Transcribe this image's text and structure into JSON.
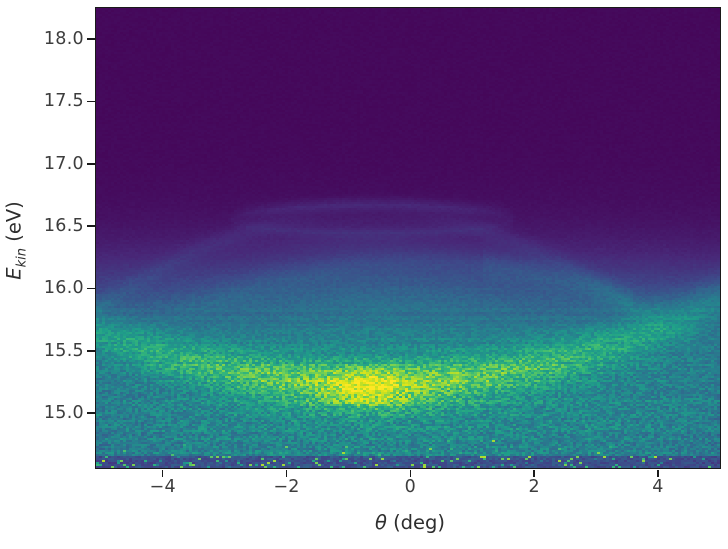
{
  "chart_data": {
    "type": "heatmap",
    "title": "",
    "xlabel": "θ (deg)",
    "ylabel": "E_kin (eV)",
    "xlabel_parts": {
      "symbol": "θ",
      "rest": " (deg)"
    },
    "ylabel_parts": {
      "symbol": "E",
      "subscript": "kin",
      "rest": " (eV)"
    },
    "x_range": [
      -5.07,
      5.01
    ],
    "y_range": [
      14.56,
      18.25
    ],
    "x_ticks": [
      -4,
      -2,
      0,
      2,
      4
    ],
    "x_tick_labels": [
      "−4",
      "−2",
      "0",
      "2",
      "4"
    ],
    "y_ticks": [
      18.0,
      17.5,
      17.0,
      16.5,
      16.0,
      15.5,
      15.0
    ],
    "y_tick_labels": [
      "18.0",
      "17.5",
      "17.0",
      "16.5",
      "16.0",
      "15.5",
      "15.0"
    ],
    "grid": false,
    "legend": "none",
    "colormap": "viridis",
    "colormap_stops": [
      [
        0.0,
        68,
        1,
        84
      ],
      [
        0.1,
        72,
        40,
        120
      ],
      [
        0.2,
        62,
        73,
        137
      ],
      [
        0.3,
        49,
        104,
        142
      ],
      [
        0.4,
        38,
        130,
        142
      ],
      [
        0.5,
        31,
        158,
        137
      ],
      [
        0.6,
        53,
        183,
        121
      ],
      [
        0.7,
        110,
        206,
        88
      ],
      [
        0.8,
        181,
        222,
        43
      ],
      [
        0.9,
        226,
        228,
        24
      ],
      [
        1.0,
        253,
        231,
        37
      ]
    ],
    "description": "ARPES-style photoemission intensity map: bright dispersive band with minimum near θ=-0.6 deg, Ekin=15.2 eV sitting on a broad continuum below ~15.9 eV; faint lens-shaped feature near 16.55 eV and weak dispersing wings near 16.0-16.6 eV on a dark background.",
    "features": {
      "background": {
        "base": 0.02
      },
      "continuum": {
        "onset_E": 15.95,
        "softness": 0.22,
        "amp": 0.45,
        "edge_falloff": 0.13,
        "bottom_E": 15.0,
        "bottom_dim": 0.14
      },
      "haze": {
        "theta": -0.5,
        "E": 16.02,
        "sigma_theta": 2.3,
        "sigma_E": 0.24,
        "amp": 0.06
      },
      "underglow": {
        "theta": -0.8,
        "E": 16.36,
        "sigma_theta": 1.7,
        "sigma_E": 0.16,
        "amp": 0.025
      },
      "main_band": {
        "vertex_theta": -0.6,
        "vertex_E": 15.22,
        "curvature": 0.022,
        "amp": 0.3,
        "sigma_E": 0.18,
        "theta_sigma": 2.6,
        "base_frac": 0.45
      },
      "core_blob": {
        "theta": -0.65,
        "E": 15.21,
        "sigma_theta": 0.62,
        "sigma_E": 0.14,
        "amp": 0.24
      },
      "eye": {
        "theta_c": -0.6,
        "half_width": 2.3,
        "E_c": 16.55,
        "upper_h": 0.13,
        "lower_h": 0.12,
        "upper_amp": 0.05,
        "lower_amp": 0.032,
        "fill_amp": 0.018,
        "arc_sigma": 0.05
      },
      "wings": {
        "theta0": -0.7,
        "E0": 16.6,
        "curvature": 0.04,
        "inner": 1.8,
        "amp": 0.034,
        "sigma_E": 0.08,
        "outer_fade": 4.2
      },
      "tent": {
        "theta0": 0.2,
        "E0": 16.22,
        "curvature": 0.028,
        "amp": 0.042,
        "sigma_E": 0.11,
        "right_boost": 1.8,
        "right_lo": 1.2,
        "right_hi": 3.6
      },
      "noise": {
        "seed": 7,
        "base": 0.05,
        "low_amp": 0.2,
        "low_E": 15.55,
        "low_width": 0.25,
        "row_gain": 0.03,
        "additive": 0.006,
        "speckle_E": 14.78,
        "speckle_p": 0.02,
        "speckle_amp": 0.3
      },
      "bottom_strip": {
        "E": 14.66,
        "darken": 0.55,
        "speckle_p": 0.08,
        "speckle_amp": 0.55
      }
    }
  }
}
